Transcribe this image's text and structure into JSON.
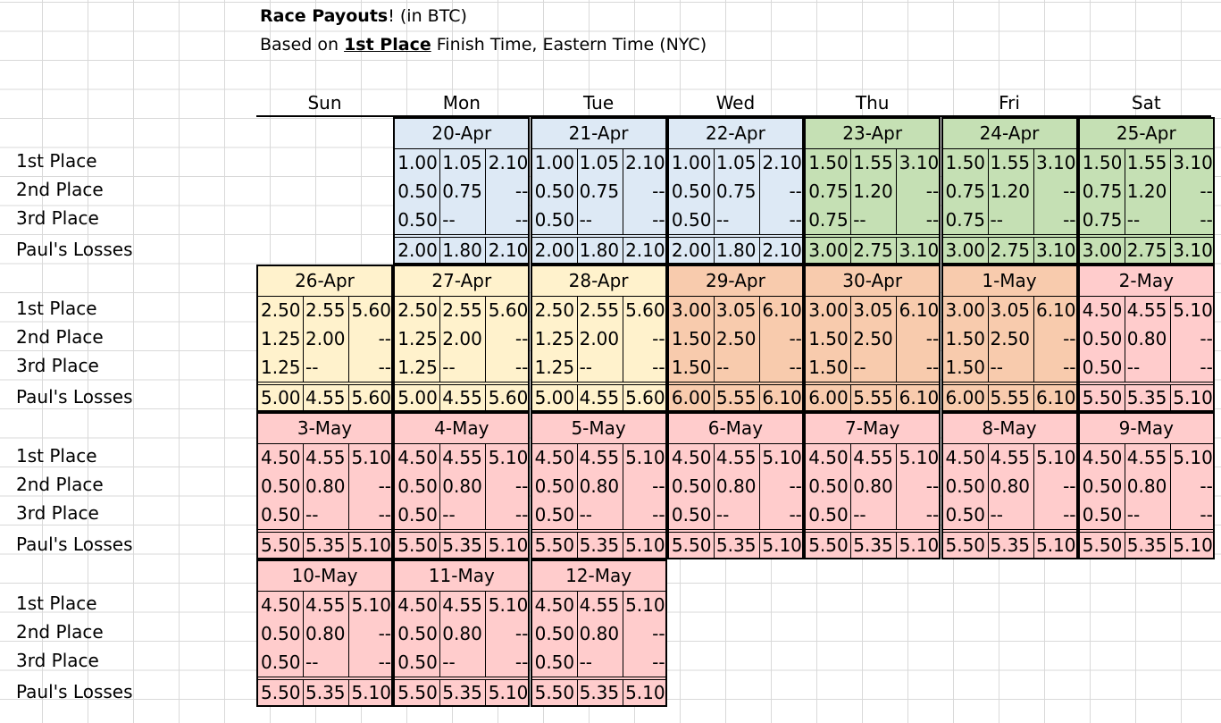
{
  "title": {
    "bold": "Race Payouts",
    "excl": "!",
    "rest": " (in BTC)",
    "line2_prefix": "Based on ",
    "line2_bold": "1st Place",
    "line2_rest": " Finish Time, Eastern Time (NYC)"
  },
  "days_of_week": [
    "Sun",
    "Mon",
    "Tue",
    "Wed",
    "Thu",
    "Fri",
    "Sat"
  ],
  "row_labels": [
    "1st Place",
    "2nd Place",
    "3rd Place",
    "Paul's Losses"
  ],
  "colors": {
    "blue": "#dde9f5",
    "green": "#c5e0b4",
    "yellow": "#fff2cc",
    "orange": "#f8cbad",
    "pink": "#ffcccc"
  },
  "weeks": [
    {
      "start_col": 1,
      "days": [
        {
          "date": "20-Apr",
          "color": "blue",
          "rows": [
            [
              "1.00",
              "1.05",
              "2.10"
            ],
            [
              "0.50",
              "0.75",
              "--"
            ],
            [
              "0.50",
              "--",
              "--"
            ],
            [
              "2.00",
              "1.80",
              "2.10"
            ]
          ]
        },
        {
          "date": "21-Apr",
          "color": "blue",
          "rows": [
            [
              "1.00",
              "1.05",
              "2.10"
            ],
            [
              "0.50",
              "0.75",
              "--"
            ],
            [
              "0.50",
              "--",
              "--"
            ],
            [
              "2.00",
              "1.80",
              "2.10"
            ]
          ]
        },
        {
          "date": "22-Apr",
          "color": "blue",
          "rows": [
            [
              "1.00",
              "1.05",
              "2.10"
            ],
            [
              "0.50",
              "0.75",
              "--"
            ],
            [
              "0.50",
              "--",
              "--"
            ],
            [
              "2.00",
              "1.80",
              "2.10"
            ]
          ]
        },
        {
          "date": "23-Apr",
          "color": "green",
          "rows": [
            [
              "1.50",
              "1.55",
              "3.10"
            ],
            [
              "0.75",
              "1.20",
              "--"
            ],
            [
              "0.75",
              "--",
              "--"
            ],
            [
              "3.00",
              "2.75",
              "3.10"
            ]
          ]
        },
        {
          "date": "24-Apr",
          "color": "green",
          "rows": [
            [
              "1.50",
              "1.55",
              "3.10"
            ],
            [
              "0.75",
              "1.20",
              "--"
            ],
            [
              "0.75",
              "--",
              "--"
            ],
            [
              "3.00",
              "2.75",
              "3.10"
            ]
          ]
        },
        {
          "date": "25-Apr",
          "color": "green",
          "rows": [
            [
              "1.50",
              "1.55",
              "3.10"
            ],
            [
              "0.75",
              "1.20",
              "--"
            ],
            [
              "0.75",
              "--",
              "--"
            ],
            [
              "3.00",
              "2.75",
              "3.10"
            ]
          ]
        }
      ]
    },
    {
      "start_col": 0,
      "days": [
        {
          "date": "26-Apr",
          "color": "yellow",
          "rows": [
            [
              "2.50",
              "2.55",
              "5.60"
            ],
            [
              "1.25",
              "2.00",
              "--"
            ],
            [
              "1.25",
              "--",
              "--"
            ],
            [
              "5.00",
              "4.55",
              "5.60"
            ]
          ]
        },
        {
          "date": "27-Apr",
          "color": "yellow",
          "rows": [
            [
              "2.50",
              "2.55",
              "5.60"
            ],
            [
              "1.25",
              "2.00",
              "--"
            ],
            [
              "1.25",
              "--",
              "--"
            ],
            [
              "5.00",
              "4.55",
              "5.60"
            ]
          ]
        },
        {
          "date": "28-Apr",
          "color": "yellow",
          "rows": [
            [
              "2.50",
              "2.55",
              "5.60"
            ],
            [
              "1.25",
              "2.00",
              "--"
            ],
            [
              "1.25",
              "--",
              "--"
            ],
            [
              "5.00",
              "4.55",
              "5.60"
            ]
          ]
        },
        {
          "date": "29-Apr",
          "color": "orange",
          "rows": [
            [
              "3.00",
              "3.05",
              "6.10"
            ],
            [
              "1.50",
              "2.50",
              "--"
            ],
            [
              "1.50",
              "--",
              "--"
            ],
            [
              "6.00",
              "5.55",
              "6.10"
            ]
          ]
        },
        {
          "date": "30-Apr",
          "color": "orange",
          "rows": [
            [
              "3.00",
              "3.05",
              "6.10"
            ],
            [
              "1.50",
              "2.50",
              "--"
            ],
            [
              "1.50",
              "--",
              "--"
            ],
            [
              "6.00",
              "5.55",
              "6.10"
            ]
          ]
        },
        {
          "date": "1-May",
          "color": "orange",
          "rows": [
            [
              "3.00",
              "3.05",
              "6.10"
            ],
            [
              "1.50",
              "2.50",
              "--"
            ],
            [
              "1.50",
              "--",
              "--"
            ],
            [
              "6.00",
              "5.55",
              "6.10"
            ]
          ]
        },
        {
          "date": "2-May",
          "color": "pink",
          "rows": [
            [
              "4.50",
              "4.55",
              "5.10"
            ],
            [
              "0.50",
              "0.80",
              "--"
            ],
            [
              "0.50",
              "--",
              "--"
            ],
            [
              "5.50",
              "5.35",
              "5.10"
            ]
          ]
        }
      ]
    },
    {
      "start_col": 0,
      "days": [
        {
          "date": "3-May",
          "color": "pink",
          "rows": [
            [
              "4.50",
              "4.55",
              "5.10"
            ],
            [
              "0.50",
              "0.80",
              "--"
            ],
            [
              "0.50",
              "--",
              "--"
            ],
            [
              "5.50",
              "5.35",
              "5.10"
            ]
          ]
        },
        {
          "date": "4-May",
          "color": "pink",
          "rows": [
            [
              "4.50",
              "4.55",
              "5.10"
            ],
            [
              "0.50",
              "0.80",
              "--"
            ],
            [
              "0.50",
              "--",
              "--"
            ],
            [
              "5.50",
              "5.35",
              "5.10"
            ]
          ]
        },
        {
          "date": "5-May",
          "color": "pink",
          "rows": [
            [
              "4.50",
              "4.55",
              "5.10"
            ],
            [
              "0.50",
              "0.80",
              "--"
            ],
            [
              "0.50",
              "--",
              "--"
            ],
            [
              "5.50",
              "5.35",
              "5.10"
            ]
          ]
        },
        {
          "date": "6-May",
          "color": "pink",
          "rows": [
            [
              "4.50",
              "4.55",
              "5.10"
            ],
            [
              "0.50",
              "0.80",
              "--"
            ],
            [
              "0.50",
              "--",
              "--"
            ],
            [
              "5.50",
              "5.35",
              "5.10"
            ]
          ]
        },
        {
          "date": "7-May",
          "color": "pink",
          "rows": [
            [
              "4.50",
              "4.55",
              "5.10"
            ],
            [
              "0.50",
              "0.80",
              "--"
            ],
            [
              "0.50",
              "--",
              "--"
            ],
            [
              "5.50",
              "5.35",
              "5.10"
            ]
          ]
        },
        {
          "date": "8-May",
          "color": "pink",
          "rows": [
            [
              "4.50",
              "4.55",
              "5.10"
            ],
            [
              "0.50",
              "0.80",
              "--"
            ],
            [
              "0.50",
              "--",
              "--"
            ],
            [
              "5.50",
              "5.35",
              "5.10"
            ]
          ]
        },
        {
          "date": "9-May",
          "color": "pink",
          "rows": [
            [
              "4.50",
              "4.55",
              "5.10"
            ],
            [
              "0.50",
              "0.80",
              "--"
            ],
            [
              "0.50",
              "--",
              "--"
            ],
            [
              "5.50",
              "5.35",
              "5.10"
            ]
          ]
        }
      ]
    },
    {
      "start_col": 0,
      "days": [
        {
          "date": "10-May",
          "color": "pink",
          "rows": [
            [
              "4.50",
              "4.55",
              "5.10"
            ],
            [
              "0.50",
              "0.80",
              "--"
            ],
            [
              "0.50",
              "--",
              "--"
            ],
            [
              "5.50",
              "5.35",
              "5.10"
            ]
          ]
        },
        {
          "date": "11-May",
          "color": "pink",
          "rows": [
            [
              "4.50",
              "4.55",
              "5.10"
            ],
            [
              "0.50",
              "0.80",
              "--"
            ],
            [
              "0.50",
              "--",
              "--"
            ],
            [
              "5.50",
              "5.35",
              "5.10"
            ]
          ]
        },
        {
          "date": "12-May",
          "color": "pink",
          "rows": [
            [
              "4.50",
              "4.55",
              "5.10"
            ],
            [
              "0.50",
              "0.80",
              "--"
            ],
            [
              "0.50",
              "--",
              "--"
            ],
            [
              "5.50",
              "5.35",
              "5.10"
            ]
          ]
        }
      ]
    }
  ]
}
